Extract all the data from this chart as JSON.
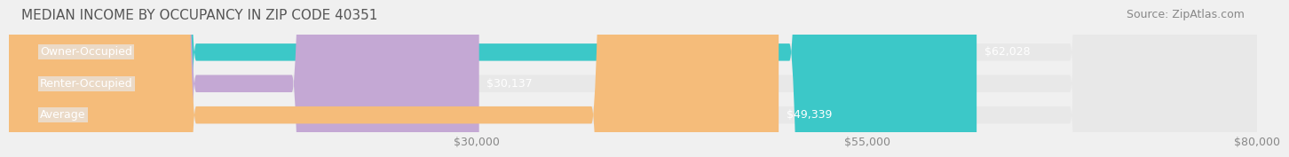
{
  "title": "MEDIAN INCOME BY OCCUPANCY IN ZIP CODE 40351",
  "source": "Source: ZipAtlas.com",
  "categories": [
    "Owner-Occupied",
    "Renter-Occupied",
    "Average"
  ],
  "values": [
    62028,
    30137,
    49339
  ],
  "bar_colors": [
    "#3cc8c8",
    "#c4a8d4",
    "#f5bc7a"
  ],
  "bar_labels": [
    "$62,028",
    "$30,137",
    "$49,339"
  ],
  "xlim": [
    0,
    80000
  ],
  "xticks": [
    30000,
    55000,
    80000
  ],
  "xticklabels": [
    "$30,000",
    "$55,000",
    "$80,000"
  ],
  "background_color": "#f0f0f0",
  "bar_bg_color": "#e8e8e8",
  "title_fontsize": 11,
  "source_fontsize": 9,
  "label_fontsize": 9,
  "tick_fontsize": 9
}
